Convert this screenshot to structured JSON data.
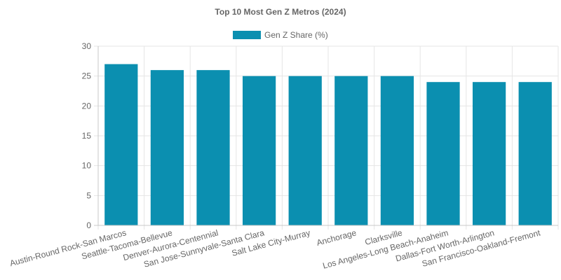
{
  "chart_data": {
    "type": "bar",
    "title": "Top 10 Most Gen Z Metros (2024)",
    "categories": [
      "Austin-Round Rock-San Marcos",
      "Seattle-Tacoma-Bellevue",
      "Denver-Aurora-Centennial",
      "San Jose-Sunnyvale-Santa Clara",
      "Salt Lake City-Murray",
      "Anchorage",
      "Clarksville",
      "Los Angeles-Long Beach-Anaheim",
      "Dallas-Fort Worth-Arlington",
      "San Francisco-Oakland-Fremont"
    ],
    "series": [
      {
        "name": "Gen Z Share (%)",
        "values": [
          27,
          26,
          26,
          25,
          25,
          25,
          25,
          24,
          24,
          24
        ],
        "color": "#0b8fb0"
      }
    ],
    "xlabel": "",
    "ylabel": "",
    "ylim": [
      0,
      30
    ],
    "yticks": [
      "0",
      "5",
      "10",
      "15",
      "20",
      "25",
      "30"
    ],
    "grid": true,
    "legend_position": "top-center"
  }
}
